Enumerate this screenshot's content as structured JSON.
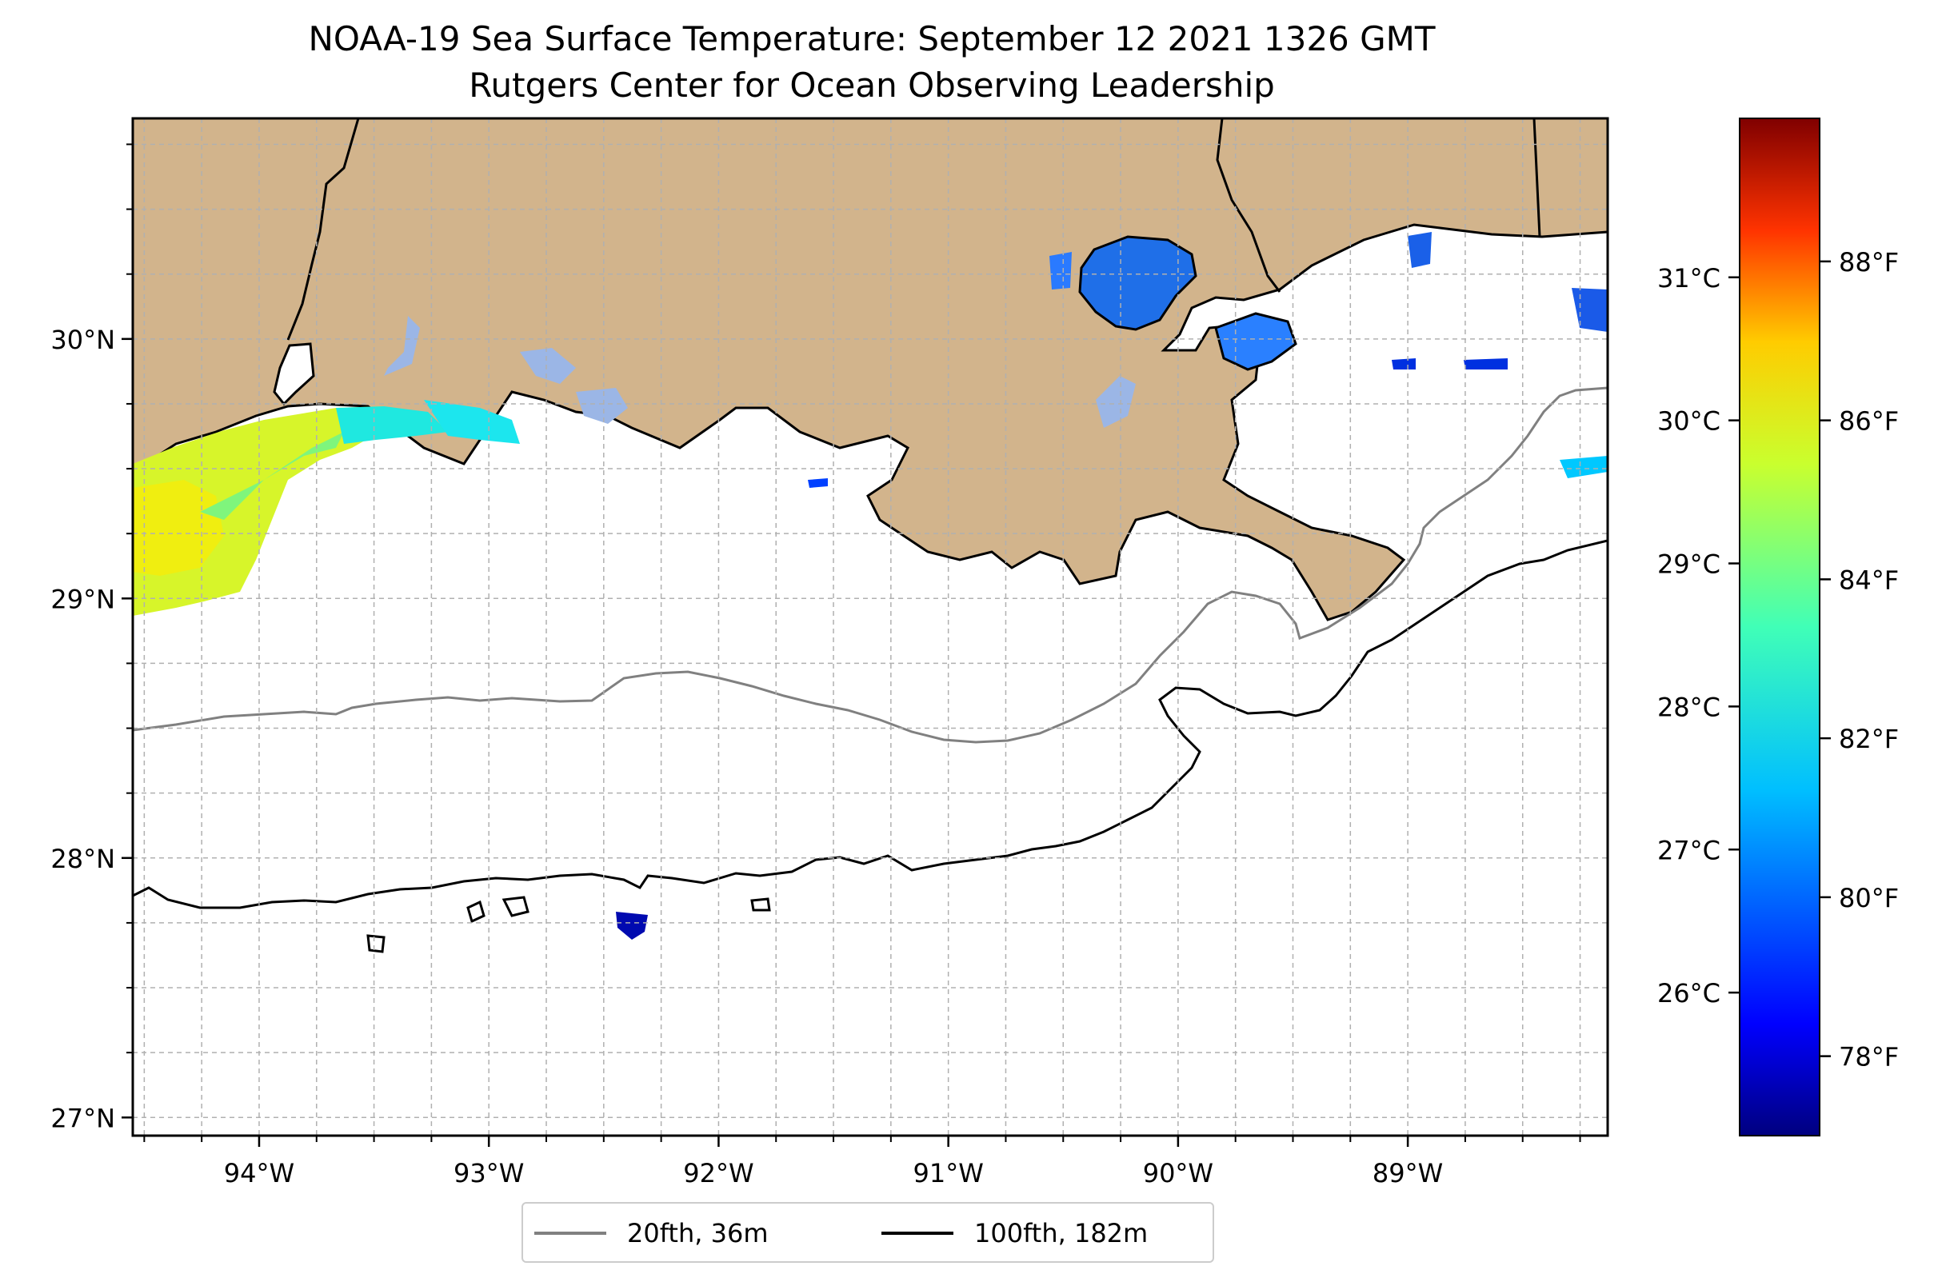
{
  "title": "NOAA-19 Sea Surface Temperature: September 12 2021 1326 GMT",
  "subtitle": "Rutgers Center for Ocean Observing Leadership",
  "map": {
    "lon_range": [
      -94.55,
      -88.13
    ],
    "lat_range": [
      26.93,
      30.85
    ],
    "land_color": "#d2b48c",
    "ocean_color": "#ffffff",
    "grid": "dashed",
    "lon_ticks": [
      {
        "value": -94,
        "label": "94°W"
      },
      {
        "value": -93,
        "label": "93°W"
      },
      {
        "value": -92,
        "label": "92°W"
      },
      {
        "value": -91,
        "label": "91°W"
      },
      {
        "value": -90,
        "label": "90°W"
      },
      {
        "value": -89,
        "label": "89°W"
      }
    ],
    "lat_ticks": [
      {
        "value": 27,
        "label": "27°N"
      },
      {
        "value": 28,
        "label": "28°N"
      },
      {
        "value": 29,
        "label": "29°N"
      },
      {
        "value": 30,
        "label": "30°N"
      }
    ]
  },
  "colorbar": {
    "colormap": "jet",
    "range_f": [
      77.0,
      89.8
    ],
    "f_ticks": [
      {
        "value": 78,
        "label": "78°F"
      },
      {
        "value": 80,
        "label": "80°F"
      },
      {
        "value": 82,
        "label": "82°F"
      },
      {
        "value": 84,
        "label": "84°F"
      },
      {
        "value": 86,
        "label": "86°F"
      },
      {
        "value": 88,
        "label": "88°F"
      }
    ],
    "c_ticks": [
      {
        "value": 26,
        "label": "26°C"
      },
      {
        "value": 27,
        "label": "27°C"
      },
      {
        "value": 28,
        "label": "28°C"
      },
      {
        "value": 29,
        "label": "29°C"
      },
      {
        "value": 30,
        "label": "30°C"
      },
      {
        "value": 31,
        "label": "31°C"
      }
    ]
  },
  "legend": {
    "placement": "lower-center",
    "entries": [
      {
        "label": "20fth, 36m",
        "color": "#808080"
      },
      {
        "label": "100fth, 182m",
        "color": "#000000"
      }
    ]
  }
}
